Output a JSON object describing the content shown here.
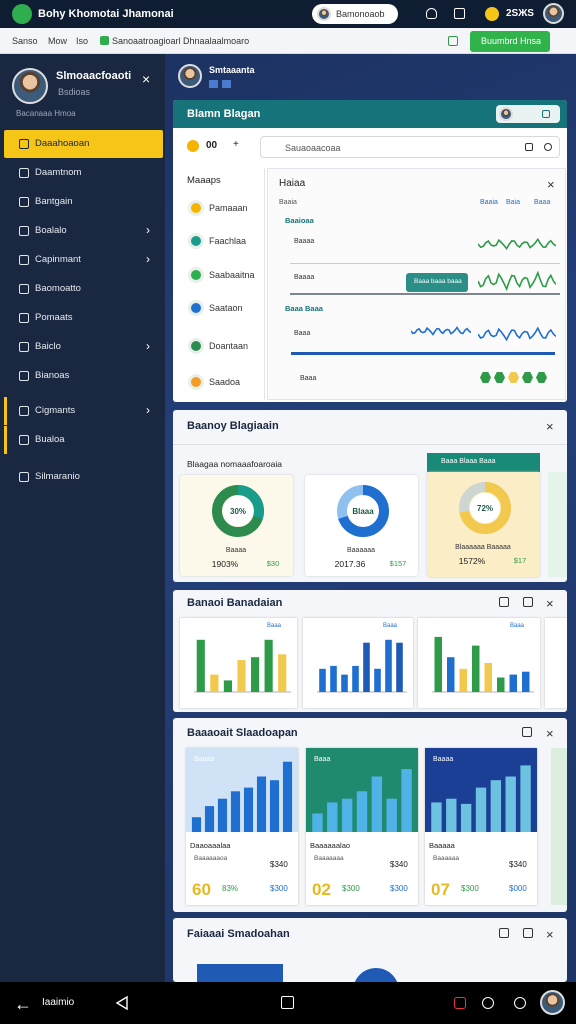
{
  "header": {
    "title": "Bohy Khomotai Jhamonai",
    "search": "Bamonoaob",
    "coins": "2ЅЖЅ"
  },
  "breadcrumb": {
    "items": [
      "Sanso",
      "Mow",
      "Iso",
      "Sanoaatroagioarl Dhnaalaalmoaro"
    ],
    "button": "Buumbrd Hnsa"
  },
  "sidebar": {
    "name": "Slmoaacfoaoti",
    "role": "Bsdioas",
    "status": "Bacanaaa Hmoa",
    "menu": [
      {
        "label": "Daaahoaoan",
        "active": true
      },
      {
        "label": "Daamtnom"
      },
      {
        "label": "Bantgain"
      },
      {
        "label": "Boalalo",
        "has_submenu": true
      },
      {
        "label": "Capinmant",
        "has_submenu": true
      },
      {
        "label": "Baomoatto"
      },
      {
        "label": "Pomaats"
      },
      {
        "label": "Baiclo",
        "has_submenu": true
      },
      {
        "label": "Bianoas"
      },
      {
        "label": "Cigmants",
        "has_submenu": true
      },
      {
        "label": "Bualoa"
      },
      {
        "label": "Silmaranio"
      }
    ]
  },
  "user": {
    "name": "Smtaaanta"
  },
  "panel1": {
    "title": "Blamn Blagan",
    "filter": "00",
    "search": "Sauaoaacoaa",
    "list_title": "Maaaps",
    "list": [
      "Pamaaan",
      "Faachlaa",
      "Saabaaitna",
      "Saataon",
      "Doantaan",
      "Saadoa"
    ],
    "detail": {
      "title": "Haiaa",
      "subtitle": "Baaia",
      "links": [
        "Baaia",
        "Baia",
        "Baaa"
      ],
      "sections": [
        "Baaioaa",
        "Baaa Baaa"
      ],
      "rows": [
        "Baaaa",
        "Baaaa",
        "Baaa",
        "Baaa"
      ],
      "button": "Baaa baaa baaa"
    }
  },
  "panel2": {
    "title": "Baanoy Blagiaain",
    "subtitle": "Blaagaa nomaaafoaroaia",
    "highlight": "Baaa Blaaa Baaa",
    "donuts": [
      {
        "value": 30,
        "value_label": "30%",
        "name": "Baaaa",
        "amount": "1903%",
        "change": "$30",
        "color": "#1a9c8c",
        "rest": "#2e8b4e",
        "bg": "#fdf9ea"
      },
      {
        "value": 70,
        "center": "Blaaa",
        "name": "Baaaaaa",
        "amount": "2017.36",
        "change": "$157",
        "color": "#1f6fd1",
        "rest": "#8fc1f0",
        "bg": "#ffffff"
      },
      {
        "value": 72,
        "value_label": "72%",
        "name": "Blaaaaaa Baaaaa",
        "amount": "1572%",
        "change": "$17",
        "color": "#f2c94c",
        "rest": "#cfd6d2",
        "bg": "#fbeec7"
      }
    ]
  },
  "panel3": {
    "title": "Banaoi Banadaian",
    "ylim": [
      0,
      100
    ],
    "charts": [
      {
        "legend": "Baaa",
        "values": [
          90,
          30,
          20,
          55,
          60,
          90,
          65
        ],
        "colors": [
          "#2e9b48",
          "#f2c94c",
          "#2e9b48",
          "#f2c94c",
          "#2e9b48",
          "#2e9b48",
          "#f2c94c"
        ]
      },
      {
        "legend": "Baaa",
        "values": [
          40,
          45,
          30,
          45,
          85,
          40,
          90,
          85
        ],
        "colors": [
          "#1f6fd1",
          "#1f6fd1",
          "#1f6fd1",
          "#1f6fd1",
          "#1f5bb5",
          "#1f6fd1",
          "#1f6fd1",
          "#1f5bb5"
        ]
      },
      {
        "legend": "Baaa",
        "values": [
          95,
          60,
          40,
          80,
          50,
          25,
          30,
          35
        ],
        "colors": [
          "#2e9b48",
          "#1f6fd1",
          "#f2c94c",
          "#2e9b48",
          "#f2c94c",
          "#2e9b48",
          "#1f6fd1",
          "#1f6fd1"
        ]
      }
    ]
  },
  "panel4": {
    "title": "Baaaoait Slaadoapan",
    "ylim": [
      0,
      100
    ],
    "cards": [
      {
        "label": "Baaaa",
        "values": [
          20,
          35,
          45,
          55,
          60,
          75,
          70,
          95
        ],
        "color": "#1f6fd1",
        "bg": "#cfe2f6",
        "name": "Daaoaaalaa",
        "sub": "Baaaaaaoa",
        "price": "$340",
        "big": "60",
        "pct": "83%",
        "total": "$300"
      },
      {
        "label": "Baaa",
        "values": [
          25,
          40,
          45,
          55,
          75,
          45,
          85
        ],
        "color": "#4fb3e8",
        "bg": "#1f8a6e",
        "name": "Baaaaaalao",
        "sub": "Baaaaaaa",
        "price": "$340",
        "big": "02",
        "pct": "$300",
        "total": "$300"
      },
      {
        "label": "Baaaa",
        "values": [
          40,
          45,
          38,
          60,
          70,
          75,
          90
        ],
        "color": "#6cc2e0",
        "bg": "#1a3f94",
        "name": "Baaaaa",
        "sub": "Baaaaaa",
        "price": "$340",
        "big": "07",
        "pct": "$300",
        "total": "$000"
      }
    ]
  },
  "panel5": {
    "title": "Faiaaai Smadoahan"
  },
  "bottom_nav": {
    "label": "Iaaimio"
  }
}
